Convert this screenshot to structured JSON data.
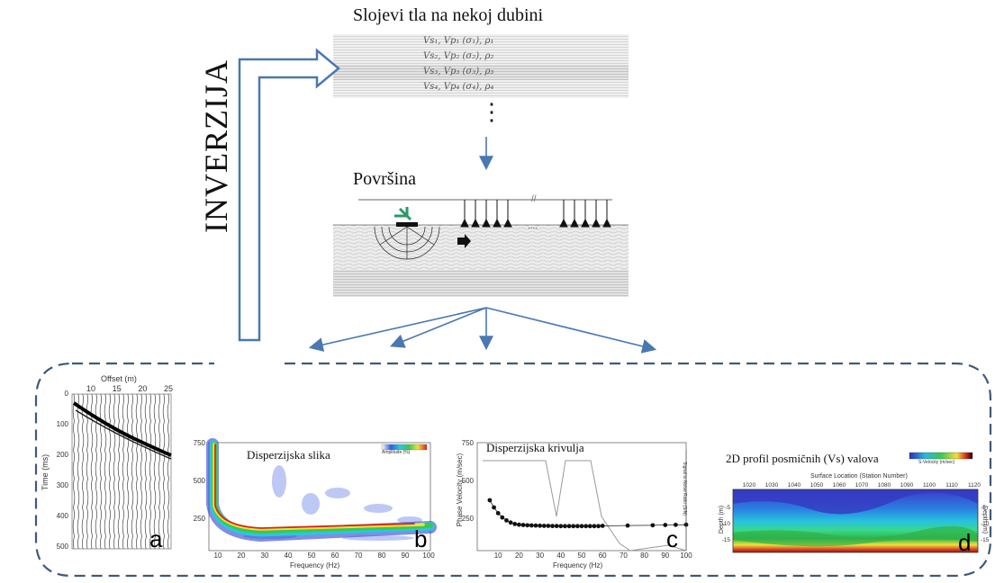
{
  "layers": {
    "title": "Slojevi tla na nekoj dubini",
    "rows": [
      "Vs₁, Vp₁ (σ₁), ρ₁",
      "Vs₂, Vp₂ (σ₂), ρ₂",
      "Vs₃, Vp₃ (σ₃), ρ₃",
      "Vs₄, Vp₄ (σ₄), ρ₄"
    ],
    "ellipsis": "⋮"
  },
  "surface": {
    "title": "Površina",
    "dots": "....",
    "break": "//"
  },
  "inversion_label": "INVERZIJA",
  "panels": {
    "a": {
      "letter": "a",
      "offset_label": "Offset (m)",
      "offset_ticks": [
        "10",
        "15",
        "20",
        "25"
      ],
      "time_label": "Time (ms)",
      "time_ticks": [
        "0",
        "100",
        "200",
        "300",
        "400",
        "500"
      ]
    },
    "b": {
      "letter": "b",
      "title": "Disperzijska slika",
      "y_ticks": [
        "750",
        "500",
        "250"
      ],
      "x_ticks": [
        "10",
        "20",
        "30",
        "40",
        "50",
        "60",
        "70",
        "80",
        "90",
        "100"
      ],
      "x_label": "Frequency (Hz)",
      "colorbar_label": "Amplitude (%)"
    },
    "c": {
      "letter": "c",
      "title": "Disperzijska krivulja",
      "y_ticks": [
        "750",
        "500",
        "250"
      ],
      "y_label": "Phase Velocity (m/sec)",
      "x_ticks": [
        "10",
        "20",
        "30",
        "40",
        "50",
        "60",
        "70",
        "80",
        "90",
        "100"
      ],
      "x_label": "Frequency (Hz)",
      "right_label": "Signal to Noise Ratio (S/N)"
    },
    "d": {
      "letter": "d",
      "title": "2D profil posmičnih (Vs) valova",
      "x_label": "Surface Location (Station Number)",
      "x_ticks": [
        "1020",
        "1030",
        "1040",
        "1050",
        "1060",
        "1070",
        "1080",
        "1090",
        "1100",
        "1110",
        "1120"
      ],
      "y_label": "Depth (m)",
      "y_ticks": [
        "-5",
        "-10",
        "-15"
      ],
      "colorbar_label": "S-Velocity (m/sec)"
    }
  },
  "chart_data": {
    "type": "scatter",
    "title": "Disperzijska krivulja",
    "xlabel": "Frequency (Hz)",
    "ylabel": "Phase Velocity (m/sec)",
    "xlim": [
      0,
      100
    ],
    "ylim": [
      0,
      750
    ],
    "x": [
      6,
      8,
      10,
      12,
      14,
      16,
      18,
      20,
      22,
      24,
      26,
      28,
      30,
      32,
      34,
      36,
      38,
      40,
      42,
      44,
      46,
      48,
      50,
      52,
      54,
      56,
      58,
      60,
      72,
      84,
      90,
      95,
      100
    ],
    "y": [
      350,
      300,
      260,
      230,
      210,
      195,
      185,
      180,
      178,
      176,
      175,
      174,
      173,
      172,
      172,
      171,
      171,
      170,
      170,
      170,
      170,
      170,
      170,
      170,
      170,
      170,
      170,
      172,
      174,
      176,
      178,
      179,
      180
    ]
  }
}
